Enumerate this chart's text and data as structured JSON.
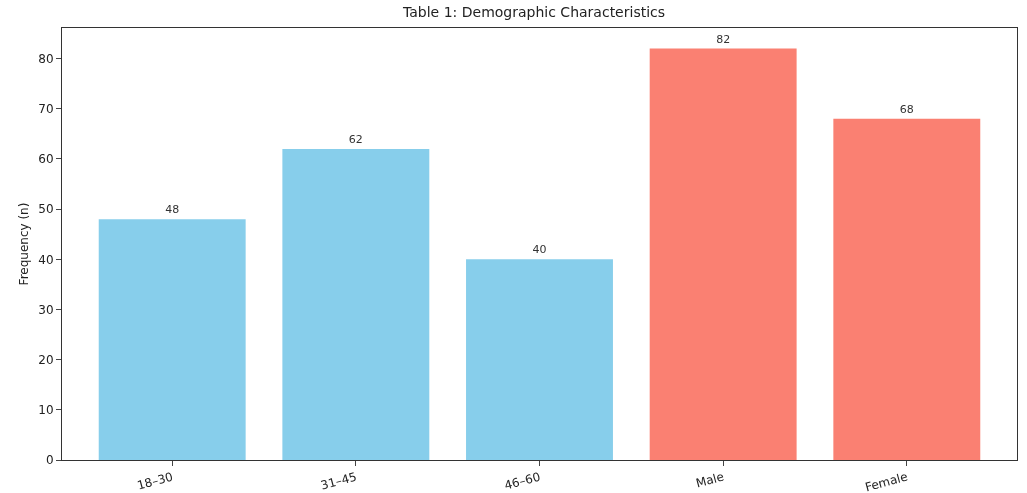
{
  "chart_data": {
    "type": "bar",
    "title": "Table 1: Demographic Characteristics",
    "ylabel": "Frequency (n)",
    "categories": [
      "18–30",
      "31–45",
      "46–60",
      "Male",
      "Female"
    ],
    "values": [
      48,
      62,
      40,
      82,
      68
    ],
    "colors": [
      "#87ceeb",
      "#87ceeb",
      "#87ceeb",
      "#fa8072",
      "#fa8072"
    ],
    "ylim": [
      0,
      86.1
    ],
    "yticks": [
      0,
      10,
      20,
      30,
      40,
      50,
      60,
      70,
      80
    ],
    "data_labels": true
  }
}
